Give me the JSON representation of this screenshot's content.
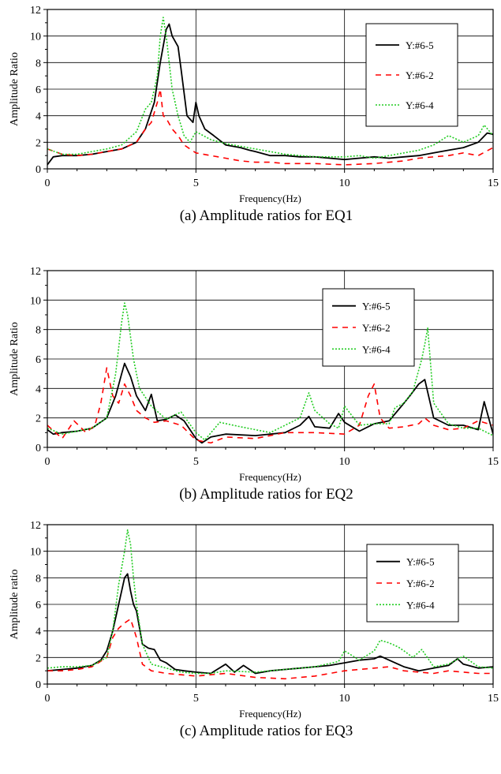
{
  "figure": {
    "panels": [
      {
        "caption": "(a) Amplitude ratios for EQ1",
        "xlabel": "Frequency(Hz)",
        "ylabel": "Amplitude Ratio",
        "xticks": [
          "0",
          "5",
          "10",
          "15"
        ],
        "yticks": [
          "0",
          "2",
          "4",
          "6",
          "8",
          "10",
          "12"
        ],
        "legend": [
          "Y:#6-5",
          "Y:#6-2",
          "Y:#6-4"
        ]
      },
      {
        "caption": "(b) Amplitude ratios for EQ2",
        "xlabel": "Frequency(Hz)",
        "ylabel": "Amplitude Ratio",
        "xticks": [
          "0",
          "5",
          "10",
          "15"
        ],
        "yticks": [
          "0",
          "2",
          "4",
          "6",
          "8",
          "10",
          "12"
        ],
        "legend": [
          "Y:#6-5",
          "Y:#6-2",
          "Y:#6-4"
        ]
      },
      {
        "caption": "(c) Amplitude ratios for EQ3",
        "xlabel": "Frequency(Hz)",
        "ylabel": "Amplitude ratio",
        "xticks": [
          "0",
          "5",
          "10",
          "15"
        ],
        "yticks": [
          "0",
          "2",
          "4",
          "6",
          "8",
          "10",
          "12"
        ],
        "legend": [
          "Y:#6-5",
          "Y:#6-2",
          "Y:#6-4"
        ]
      }
    ]
  },
  "chart_data": [
    {
      "type": "line",
      "xlabel": "Frequency(Hz)",
      "ylabel": "Amplitude Ratio",
      "xlim": [
        0,
        15
      ],
      "ylim": [
        0,
        12
      ],
      "grid": true,
      "legend_position": "top-right",
      "series": [
        {
          "name": "Y:#6-5",
          "color": "#000000",
          "dash": "solid",
          "x": [
            0,
            0.2,
            0.5,
            1,
            1.5,
            2,
            2.5,
            3,
            3.3,
            3.6,
            3.8,
            4.0,
            4.1,
            4.2,
            4.4,
            4.5,
            4.7,
            4.9,
            5.0,
            5.1,
            5.3,
            5.6,
            6.0,
            6.5,
            6.8,
            7.0,
            7.5,
            8,
            8.5,
            9,
            9.5,
            10,
            10.5,
            11,
            11.5,
            12,
            12.5,
            13,
            13.5,
            14,
            14.5,
            14.8,
            15
          ],
          "y": [
            0.3,
            0.9,
            1.0,
            1.0,
            1.1,
            1.3,
            1.5,
            2.0,
            3.0,
            5.0,
            8.0,
            10.5,
            10.9,
            10.0,
            9.2,
            7.5,
            4.0,
            3.5,
            5.0,
            4.0,
            3.0,
            2.5,
            1.8,
            1.6,
            1.4,
            1.3,
            1.0,
            1.0,
            0.9,
            0.9,
            0.8,
            0.7,
            0.8,
            0.9,
            0.8,
            0.9,
            1.0,
            1.2,
            1.4,
            1.6,
            2.0,
            2.7,
            2.6
          ]
        },
        {
          "name": "Y:#6-2",
          "color": "#ff0000",
          "dash": "dashed",
          "x": [
            0,
            0.5,
            1,
            1.5,
            2,
            2.5,
            3,
            3.3,
            3.5,
            3.7,
            3.8,
            3.9,
            4.0,
            4.2,
            4.4,
            4.6,
            5,
            5.5,
            6,
            6.5,
            7,
            7.5,
            8,
            9,
            10,
            11,
            12,
            12.5,
            13,
            13.5,
            14,
            14.5,
            15
          ],
          "y": [
            1.5,
            1.1,
            1.0,
            1.1,
            1.3,
            1.5,
            2.0,
            3.0,
            3.5,
            5.0,
            6.0,
            4.0,
            3.8,
            3.0,
            2.5,
            1.8,
            1.2,
            1.0,
            0.8,
            0.6,
            0.5,
            0.5,
            0.4,
            0.4,
            0.3,
            0.4,
            0.6,
            0.8,
            0.9,
            1.0,
            1.2,
            1.0,
            1.6
          ]
        },
        {
          "name": "Y:#6-4",
          "color": "#22cc22",
          "dash": "dotted",
          "x": [
            0,
            0.5,
            1,
            1.5,
            2,
            2.5,
            3,
            3.3,
            3.5,
            3.7,
            3.8,
            3.9,
            4.0,
            4.2,
            4.4,
            4.6,
            4.8,
            5.0,
            5.5,
            6,
            6.5,
            7,
            8,
            9,
            10,
            10.5,
            11,
            11.5,
            12,
            12.5,
            13,
            13.5,
            14,
            14.5,
            14.7,
            15
          ],
          "y": [
            1.5,
            1.1,
            1.1,
            1.3,
            1.5,
            1.8,
            2.8,
            4.5,
            5.0,
            7.0,
            10.0,
            11.4,
            10.0,
            6.0,
            4.0,
            2.5,
            2.0,
            2.8,
            2.2,
            1.9,
            1.7,
            1.5,
            1.1,
            0.9,
            0.9,
            1.0,
            0.8,
            1.0,
            1.2,
            1.4,
            1.8,
            2.5,
            2.0,
            2.5,
            3.3,
            2.5
          ]
        }
      ]
    },
    {
      "type": "line",
      "xlabel": "Frequency(Hz)",
      "ylabel": "Amplitude Ratio",
      "xlim": [
        0,
        15
      ],
      "ylim": [
        0,
        12
      ],
      "grid": true,
      "legend_position": "top-right",
      "series": [
        {
          "name": "Y:#6-5",
          "color": "#000000",
          "dash": "solid",
          "x": [
            0,
            0.2,
            0.5,
            1,
            1.5,
            2,
            2.3,
            2.5,
            2.6,
            2.8,
            3.0,
            3.3,
            3.5,
            3.7,
            4.0,
            4.3,
            4.6,
            5.0,
            5.2,
            5.5,
            6,
            7,
            8,
            8.5,
            8.8,
            9,
            9.5,
            9.8,
            10,
            10.5,
            11,
            11.5,
            12,
            12.2,
            12.5,
            12.7,
            13,
            13.5,
            14,
            14.5,
            14.7,
            15
          ],
          "y": [
            1.2,
            0.9,
            1.0,
            1.1,
            1.3,
            2.0,
            3.5,
            5.0,
            5.7,
            4.8,
            3.5,
            2.5,
            3.6,
            1.8,
            1.9,
            2.2,
            1.8,
            0.6,
            0.3,
            0.7,
            0.9,
            0.8,
            1.0,
            1.5,
            2.1,
            1.4,
            1.3,
            2.3,
            1.7,
            1.1,
            1.6,
            1.8,
            3.0,
            3.5,
            4.3,
            4.6,
            2.0,
            1.5,
            1.5,
            1.2,
            3.1,
            0.9
          ]
        },
        {
          "name": "Y:#6-2",
          "color": "#ff0000",
          "dash": "dashed",
          "x": [
            0,
            0.5,
            0.9,
            1.3,
            1.6,
            1.8,
            2.0,
            2.2,
            2.4,
            2.6,
            2.8,
            3.0,
            3.3,
            3.6,
            4.0,
            4.5,
            5.0,
            5.5,
            6,
            7,
            8,
            9,
            10,
            10.5,
            10.8,
            11.0,
            11.2,
            11.5,
            12,
            12.5,
            12.7,
            13,
            13.5,
            14,
            14.5,
            15
          ],
          "y": [
            1.5,
            0.6,
            1.8,
            1.0,
            1.5,
            3.0,
            5.4,
            3.5,
            3.0,
            4.3,
            3.5,
            2.5,
            2.0,
            1.7,
            1.8,
            1.5,
            0.5,
            0.3,
            0.7,
            0.6,
            1.0,
            1.0,
            0.9,
            1.5,
            3.5,
            4.3,
            2.0,
            1.3,
            1.4,
            1.6,
            2.0,
            1.5,
            1.2,
            1.3,
            1.8,
            1.5
          ]
        },
        {
          "name": "Y:#6-4",
          "color": "#22cc22",
          "dash": "dotted",
          "x": [
            0,
            0.5,
            1,
            1.5,
            2,
            2.3,
            2.5,
            2.6,
            2.7,
            2.9,
            3.1,
            3.5,
            4.0,
            4.5,
            5.0,
            5.3,
            5.8,
            6.5,
            7.5,
            8.5,
            8.8,
            9.0,
            9.5,
            9.8,
            10.0,
            10.5,
            11,
            11.5,
            11.7,
            12,
            12.3,
            12.6,
            12.7,
            12.8,
            13,
            13.5,
            14,
            14.5,
            15
          ],
          "y": [
            1.3,
            0.9,
            1.1,
            1.3,
            2.0,
            5.0,
            8.5,
            9.8,
            9.0,
            6.0,
            4.0,
            2.8,
            1.9,
            2.4,
            1.0,
            0.5,
            1.7,
            1.4,
            1.0,
            2.0,
            3.7,
            2.5,
            1.6,
            1.3,
            2.8,
            1.5,
            1.6,
            1.6,
            2.7,
            3.0,
            3.8,
            6.0,
            7.0,
            8.1,
            3.0,
            1.6,
            1.3,
            1.3,
            0.8
          ]
        }
      ]
    },
    {
      "type": "line",
      "xlabel": "Frequency(Hz)",
      "ylabel": "Amplitude ratio",
      "xlim": [
        0,
        15
      ],
      "ylim": [
        0,
        12
      ],
      "grid": true,
      "legend_position": "top-right",
      "series": [
        {
          "name": "Y:#6-5",
          "color": "#000000",
          "dash": "solid",
          "x": [
            0,
            0.5,
            1,
            1.5,
            1.8,
            2.0,
            2.2,
            2.4,
            2.6,
            2.7,
            2.8,
            2.9,
            3.0,
            3.2,
            3.4,
            3.6,
            3.8,
            4.0,
            4.3,
            4.6,
            5.0,
            5.5,
            6.0,
            6.3,
            6.6,
            7.0,
            7.5,
            8,
            8.5,
            9,
            9.5,
            10,
            10.5,
            11,
            11.2,
            11.5,
            12,
            12.5,
            13,
            13.5,
            13.8,
            14,
            14.5,
            15
          ],
          "y": [
            1.0,
            1.1,
            1.2,
            1.4,
            1.8,
            2.5,
            4.0,
            6.0,
            8.0,
            8.3,
            7.0,
            6.0,
            5.5,
            3.0,
            2.7,
            2.6,
            1.8,
            1.6,
            1.1,
            1.0,
            0.9,
            0.8,
            1.5,
            0.9,
            1.4,
            0.8,
            1.0,
            1.1,
            1.2,
            1.3,
            1.4,
            1.6,
            1.8,
            1.9,
            2.1,
            1.8,
            1.3,
            1.0,
            1.2,
            1.4,
            1.9,
            1.5,
            1.2,
            1.3
          ]
        },
        {
          "name": "Y:#6-2",
          "color": "#ff0000",
          "dash": "dashed",
          "x": [
            0,
            0.5,
            1,
            1.5,
            2.0,
            2.2,
            2.4,
            2.6,
            2.8,
            3.0,
            3.2,
            3.5,
            4.0,
            4.5,
            5.0,
            5.5,
            6,
            7,
            8,
            9,
            10,
            10.5,
            11,
            11.5,
            12,
            12.5,
            13,
            13.5,
            14,
            14.5,
            15
          ],
          "y": [
            1.0,
            1.0,
            1.1,
            1.3,
            2.0,
            3.5,
            4.2,
            4.6,
            4.9,
            3.5,
            1.5,
            1.0,
            0.8,
            0.7,
            0.6,
            0.7,
            0.8,
            0.5,
            0.4,
            0.6,
            1.0,
            1.1,
            1.2,
            1.3,
            1.0,
            0.9,
            0.8,
            1.0,
            0.9,
            0.8,
            0.8
          ]
        },
        {
          "name": "Y:#6-4",
          "color": "#22cc22",
          "dash": "dotted",
          "x": [
            0,
            0.5,
            1,
            1.5,
            2.0,
            2.2,
            2.4,
            2.6,
            2.7,
            2.8,
            2.9,
            3.0,
            3.2,
            3.5,
            4.0,
            4.5,
            5.0,
            5.5,
            6,
            7,
            8,
            9,
            9.8,
            10.0,
            10.5,
            11,
            11.2,
            11.5,
            11.8,
            12.0,
            12.3,
            12.6,
            13,
            13.5,
            14,
            14.5,
            15
          ],
          "y": [
            1.2,
            1.3,
            1.3,
            1.4,
            2.0,
            4.0,
            7.5,
            10.0,
            11.6,
            10.5,
            8.0,
            6.0,
            3.0,
            1.5,
            1.2,
            0.9,
            0.8,
            0.8,
            1.0,
            0.9,
            1.1,
            1.3,
            1.7,
            2.5,
            1.8,
            2.5,
            3.3,
            3.1,
            2.8,
            2.5,
            2.0,
            2.6,
            1.3,
            1.5,
            2.1,
            1.3,
            1.2
          ]
        }
      ]
    }
  ]
}
